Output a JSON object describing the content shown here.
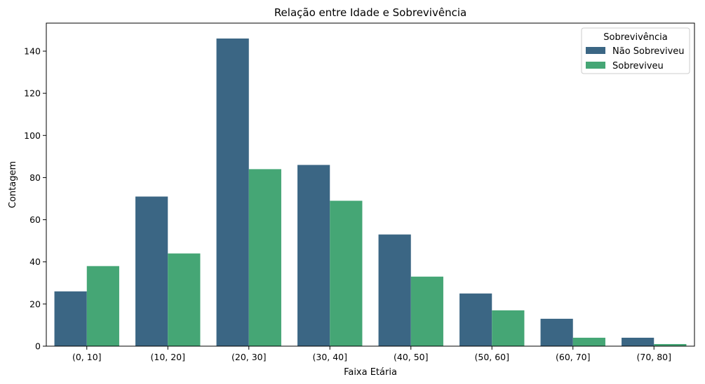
{
  "chart_data": {
    "type": "bar",
    "title": "Relação entre Idade e Sobrevivência",
    "xlabel": "Faixa Etária",
    "ylabel": "Contagem",
    "categories": [
      "(0, 10]",
      "(10, 20]",
      "(20, 30]",
      "(30, 40]",
      "(40, 50]",
      "(50, 60]",
      "(60, 70]",
      "(70, 80]"
    ],
    "series": [
      {
        "name": "Não Sobreviveu",
        "values": [
          26,
          71,
          146,
          86,
          53,
          25,
          13,
          4
        ],
        "color": "#3b6684"
      },
      {
        "name": "Sobreviveu",
        "values": [
          38,
          44,
          84,
          69,
          33,
          17,
          4,
          1
        ],
        "color": "#45a675"
      }
    ],
    "ylim": [
      0,
      153.3
    ],
    "yticks": [
      "0",
      "20",
      "40",
      "60",
      "80",
      "100",
      "120",
      "140"
    ],
    "legend": {
      "title": "Sobrevivência",
      "placement": "top-right"
    },
    "grid": false
  }
}
